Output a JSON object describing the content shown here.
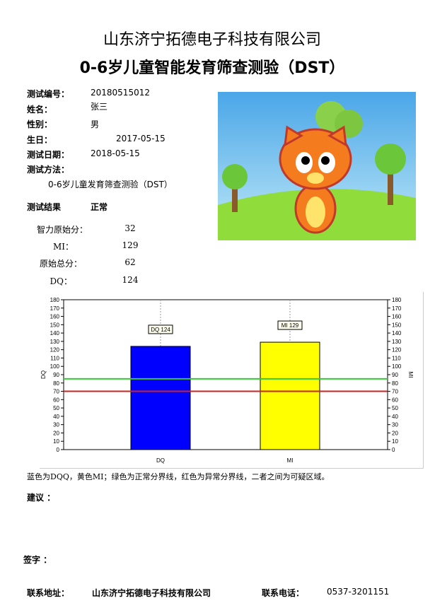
{
  "header": {
    "company": "山东济宁拓德电子科技有限公司",
    "title": "0-6岁儿童智能发育筛查测验（DST）"
  },
  "info": {
    "test_no_label": "测试编号：",
    "test_no": "20180515012",
    "name_label": "姓名：",
    "name": "张三",
    "gender_label": "性别：",
    "gender": "男",
    "birthday_label": "生日：",
    "birthday": "2017-05-15",
    "test_date_label": "测试日期：",
    "test_date": "2018-05-15",
    "method_label": "测试方法：",
    "method": "0-6岁儿童发育筛查测验（DST）",
    "result_label": "测试结果",
    "result": "正常"
  },
  "scores": [
    {
      "label": "智力原始分：",
      "value": "32"
    },
    {
      "label": "MI：",
      "value": "129"
    },
    {
      "label": "原始总分：",
      "value": "62"
    },
    {
      "label": "DQ：",
      "value": "124"
    }
  ],
  "chart_data": {
    "type": "bar",
    "categories": [
      "DQ",
      "MI"
    ],
    "values": [
      124,
      129
    ],
    "colors": [
      "#0000ff",
      "#ffff00"
    ],
    "data_labels": [
      "DQ 124",
      "MI 129"
    ],
    "ylabel": "DQ",
    "ylabel_right": "MI",
    "ylim": [
      0,
      180
    ],
    "ytick_step": 10,
    "reference_lines": [
      {
        "value": 85,
        "color": "#33cc33"
      },
      {
        "value": 70,
        "color": "#cc2222"
      }
    ],
    "grid": false
  },
  "legend_note": "蓝色为DQQ，黄色MI；绿色为正常分界线，红色为异常分界线，二者之间为可疑区域。",
  "advice_label": "建议 ：",
  "signature_label": "签字 ：",
  "footer": {
    "address_label": "联系地址：",
    "address": "山东济宁拓德电子科技有限公司",
    "phone_label": "联系电话：",
    "phone": "0537-3201151"
  }
}
